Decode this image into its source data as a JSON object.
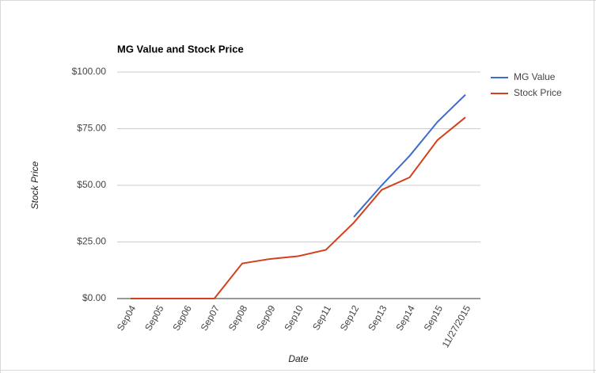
{
  "chart_data": {
    "type": "line",
    "title": "MG Value and Stock Price",
    "x_label": "Date",
    "y_label": "Stock Price",
    "categories": [
      "Sep04",
      "Sep05",
      "Sep06",
      "Sep07",
      "Sep08",
      "Sep09",
      "Sep10",
      "Sep11",
      "Sep12",
      "Sep13",
      "Sep14",
      "Sep15",
      "11/27/2015"
    ],
    "series": [
      {
        "name": "MG Value",
        "color": "#3c6bd1",
        "values": [
          null,
          null,
          null,
          null,
          null,
          null,
          null,
          null,
          36,
          50,
          63,
          78,
          90
        ]
      },
      {
        "name": "Stock Price",
        "color": "#d2401c",
        "values": [
          0,
          0,
          0,
          0,
          15.5,
          17.5,
          18.7,
          21.5,
          33.5,
          48,
          53.5,
          70,
          80
        ]
      }
    ],
    "ylim": [
      0,
      100
    ],
    "yticks": [
      {
        "value": 0,
        "label": "$0.00"
      },
      {
        "value": 25,
        "label": "$25.00"
      },
      {
        "value": 50,
        "label": "$50.00"
      },
      {
        "value": 75,
        "label": "$75.00"
      },
      {
        "value": 100,
        "label": "$100.00"
      }
    ],
    "grid": true,
    "legend": "right"
  }
}
